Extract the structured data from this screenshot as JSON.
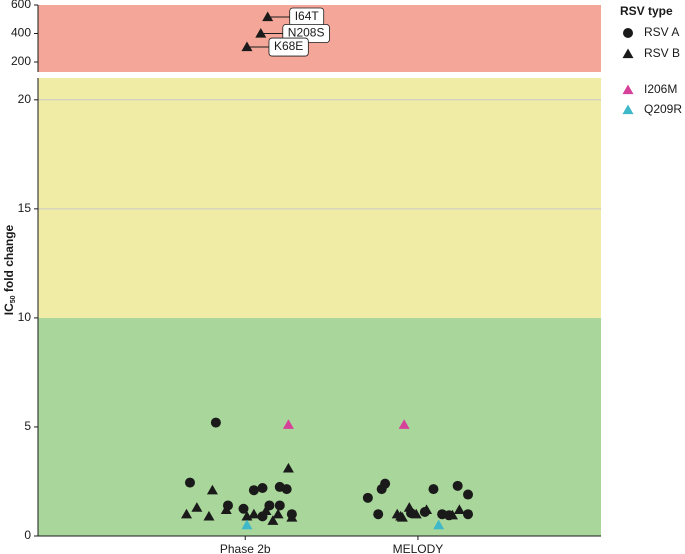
{
  "chart_data": {
    "type": "scatter",
    "ylabel": {
      "main": "IC",
      "sub": "50",
      "rest": " fold change"
    },
    "xlim": [
      -0.2,
      3.06
    ],
    "xticks": [
      {
        "value": 1,
        "label": "Phase 2b"
      },
      {
        "value": 2,
        "label": "MELODY"
      }
    ],
    "ylim": [
      0,
      21
    ],
    "yticks": [
      0,
      5,
      10,
      15,
      20
    ],
    "grid_ticks": [
      15,
      20
    ],
    "bands": [
      {
        "from": 0,
        "to": 10,
        "color": "#a9d69a"
      },
      {
        "from": 10,
        "to": 21,
        "color": "#f0eca6"
      }
    ],
    "upper_panel": {
      "ylim": [
        130,
        600
      ],
      "yticks": [
        200,
        400,
        600
      ],
      "color": "#f4a699"
    },
    "legend_title": "RSV type",
    "series": [
      {
        "name": "RSV A",
        "marker": "circle",
        "color": "#1a1a1a",
        "x": [
          0.83,
          0.68,
          1.05,
          1.1,
          1.2,
          1.24,
          0.9,
          0.99,
          1.14,
          1.2,
          1.27,
          1.1,
          1.71,
          1.77,
          1.79,
          1.81,
          2.09,
          2.23,
          2.29,
          2.29,
          2.14,
          2.18,
          1.96,
          2.04
        ],
        "values": [
          5.2,
          2.45,
          2.1,
          2.2,
          2.25,
          2.15,
          1.4,
          1.25,
          1.4,
          1.4,
          1.0,
          0.9,
          1.75,
          1.0,
          2.15,
          2.4,
          2.15,
          2.3,
          1.9,
          1.0,
          1.0,
          0.95,
          1.05,
          1.1
        ]
      },
      {
        "name": "RSV B",
        "marker": "triangle",
        "color": "#1a1a1a",
        "x": [
          0.66,
          0.72,
          0.79,
          0.81,
          0.89,
          1.01,
          1.16,
          1.19,
          1.25,
          1.12,
          1.27,
          1.05,
          1.88,
          1.91,
          1.95,
          1.99,
          2.05,
          1.9,
          2.2,
          2.24
        ],
        "values": [
          1.0,
          1.3,
          0.9,
          2.1,
          1.2,
          0.9,
          0.7,
          1.0,
          3.1,
          1.15,
          0.85,
          1.0,
          1.0,
          0.85,
          1.3,
          1.0,
          1.2,
          0.9,
          0.95,
          1.2
        ]
      },
      {
        "name": "I206M",
        "marker": "triangle",
        "color": "#d6419a",
        "x": [
          1.25,
          1.92
        ],
        "values": [
          5.1,
          5.1
        ]
      },
      {
        "name": "Q209R",
        "marker": "triangle",
        "color": "#3fb8c9",
        "x": [
          1.01,
          2.12
        ],
        "values": [
          0.5,
          0.5
        ]
      }
    ],
    "annotations": [
      {
        "text": "I64T",
        "marker": "triangle",
        "color": "#1a1a1a",
        "x": 1.13,
        "y": 516
      },
      {
        "text": "N208S",
        "marker": "triangle",
        "color": "#1a1a1a",
        "x": 1.09,
        "y": 400
      },
      {
        "text": "K68E",
        "marker": "triangle",
        "color": "#1a1a1a",
        "x": 1.01,
        "y": 305
      }
    ]
  }
}
